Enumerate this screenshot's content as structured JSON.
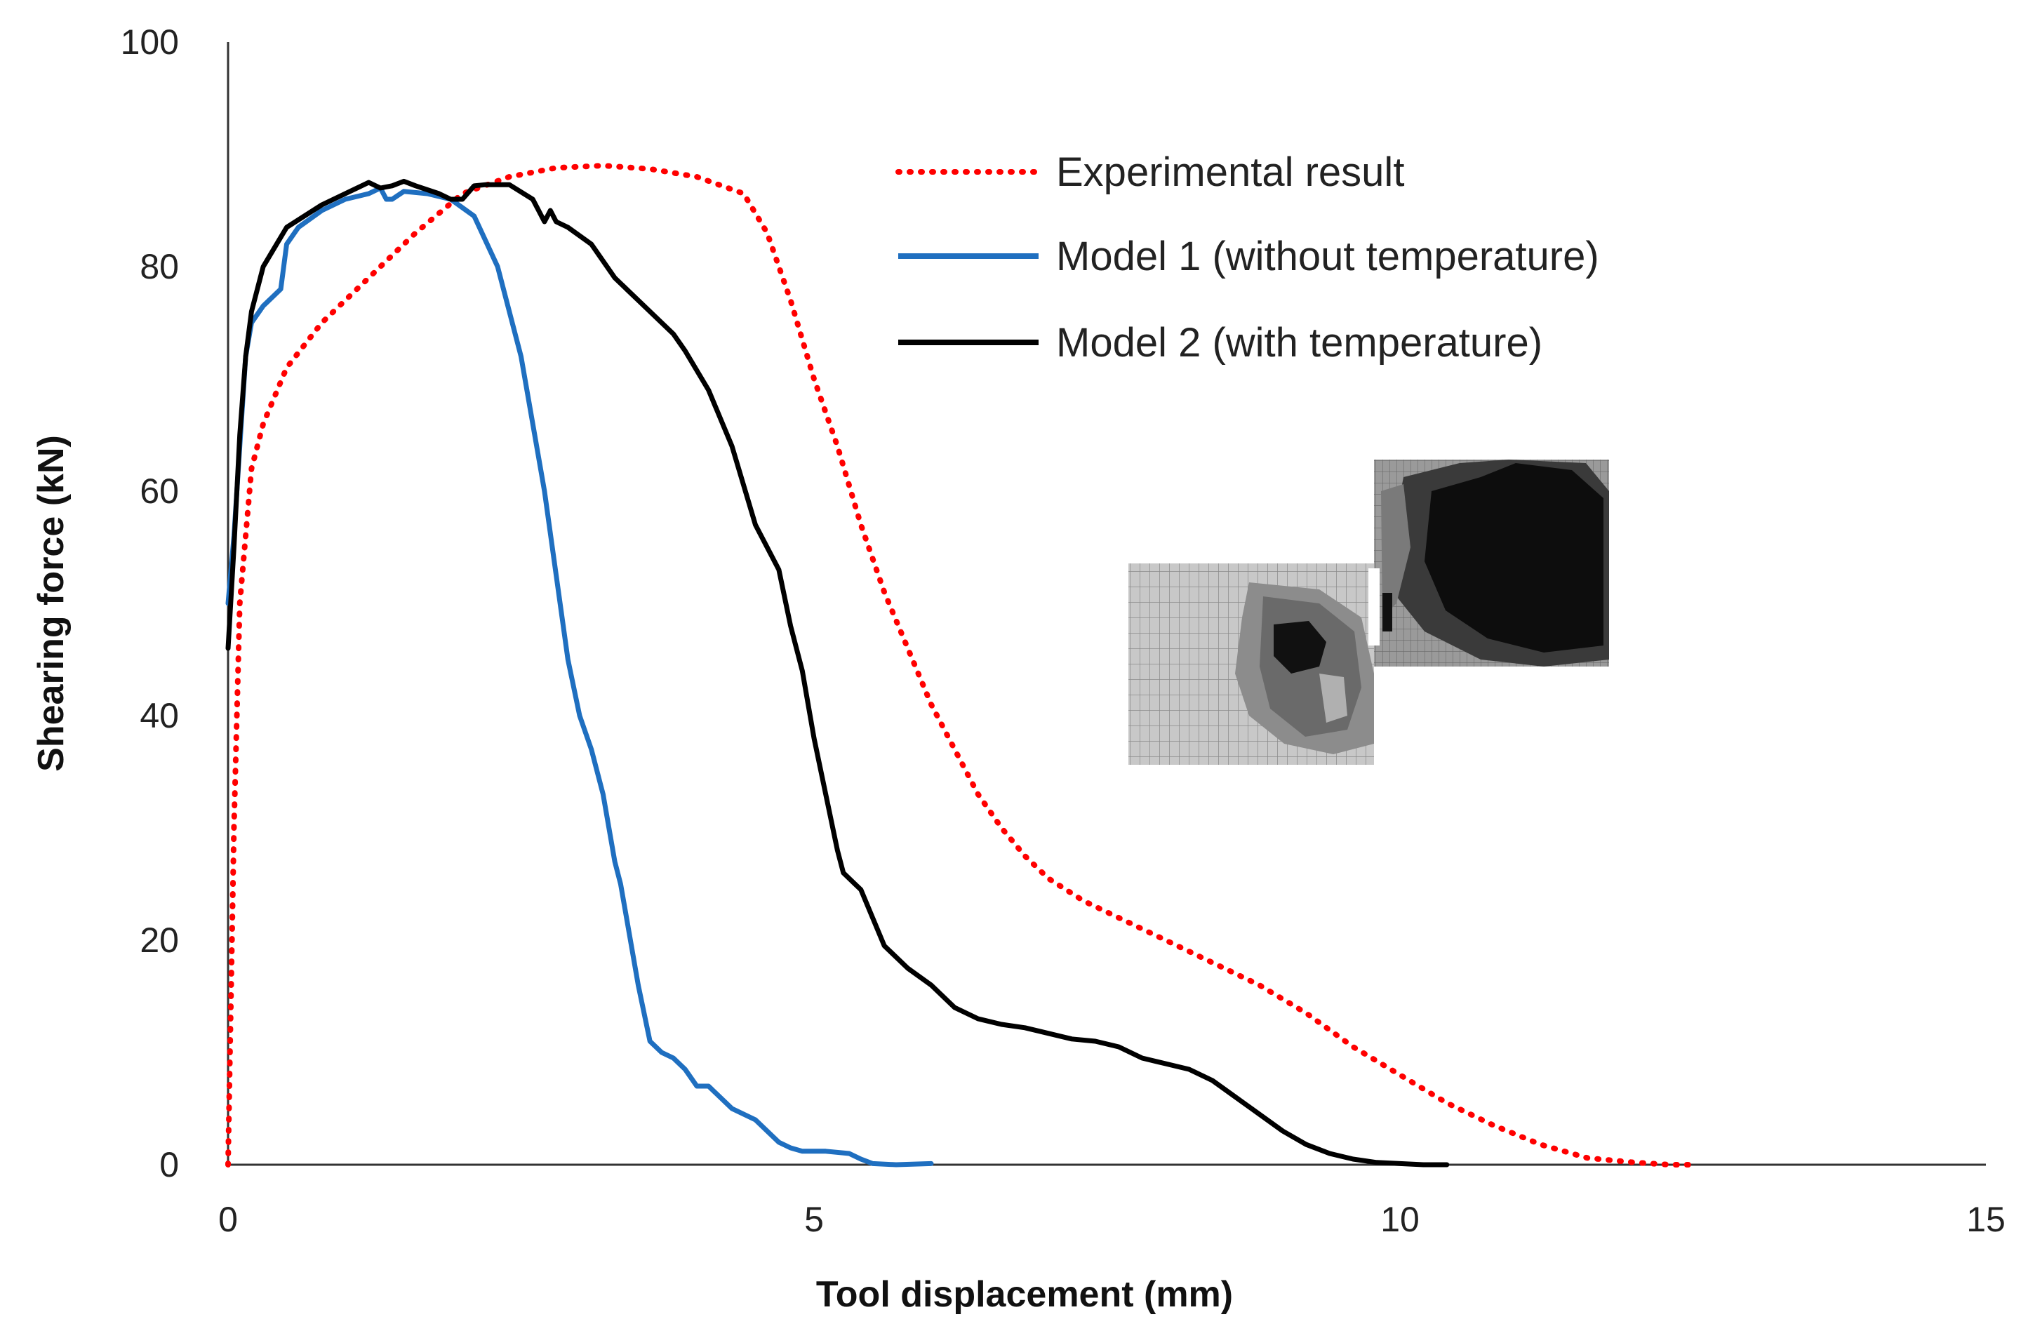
{
  "chart_data": {
    "type": "line",
    "title": "",
    "xlabel": "Tool displacement (mm)",
    "ylabel": "Shearing force (kN)",
    "xlim": [
      0,
      15
    ],
    "ylim": [
      0,
      100
    ],
    "xticks": [
      0,
      5,
      10,
      15
    ],
    "yticks": [
      0,
      20,
      40,
      60,
      80,
      100
    ],
    "grid": false,
    "legend_position": "top-right",
    "series": [
      {
        "name": "Experimental result",
        "color": "#ff0000",
        "style": "dotted",
        "x": [
          0,
          0.05,
          0.1,
          0.2,
          0.3,
          0.5,
          0.8,
          1.2,
          1.6,
          2.0,
          2.4,
          2.8,
          3.2,
          3.6,
          4.0,
          4.4,
          4.6,
          4.8,
          5.0,
          5.2,
          5.4,
          5.6,
          5.8,
          6.0,
          6.2,
          6.4,
          6.6,
          6.8,
          7.0,
          7.3,
          7.6,
          8.0,
          8.4,
          8.8,
          9.2,
          9.6,
          10.0,
          10.4,
          10.8,
          11.2,
          11.6,
          12.0,
          12.3,
          12.5
        ],
        "y": [
          0,
          30,
          50,
          62,
          66,
          71,
          75,
          79,
          83,
          86.5,
          88,
          88.8,
          89,
          88.7,
          88,
          86.5,
          83,
          77,
          70,
          64,
          57,
          51,
          46,
          41,
          37,
          33,
          30,
          27.5,
          25.5,
          23.5,
          22,
          20,
          18,
          16,
          13.5,
          10.5,
          8,
          5.5,
          3.5,
          1.8,
          0.6,
          0.2,
          0,
          0
        ]
      },
      {
        "name": "Model 1 (without temperature)",
        "color": "#1f6fc0",
        "style": "solid",
        "x": [
          0,
          0.05,
          0.1,
          0.15,
          0.2,
          0.3,
          0.4,
          0.45,
          0.5,
          0.6,
          0.8,
          1.0,
          1.2,
          1.3,
          1.35,
          1.4,
          1.5,
          1.7,
          1.9,
          2.1,
          2.3,
          2.5,
          2.7,
          2.9,
          3.0,
          3.1,
          3.2,
          3.3,
          3.35,
          3.4,
          3.5,
          3.6,
          3.7,
          3.8,
          3.9,
          4.0,
          4.1,
          4.2,
          4.3,
          4.5,
          4.7,
          4.8,
          4.9,
          5.0,
          5.1,
          5.3,
          5.4,
          5.5,
          5.7,
          6.0
        ],
        "y": [
          50,
          56,
          64,
          72,
          75,
          76.5,
          77.5,
          78,
          82,
          83.5,
          85,
          86,
          86.5,
          87,
          86,
          86,
          86.7,
          86.5,
          86,
          84.5,
          80,
          72,
          60,
          45,
          40,
          37,
          33,
          27,
          25,
          22,
          16,
          11,
          10,
          9.5,
          8.5,
          7,
          7,
          6,
          5,
          4,
          2,
          1.5,
          1.2,
          1.2,
          1.2,
          1,
          0.5,
          0.1,
          0,
          0.1
        ]
      },
      {
        "name": "Model 2 (with temperature)",
        "color": "#000000",
        "style": "solid",
        "x": [
          0,
          0.05,
          0.1,
          0.15,
          0.2,
          0.3,
          0.5,
          0.8,
          1.0,
          1.2,
          1.3,
          1.4,
          1.5,
          1.6,
          1.8,
          1.9,
          2.0,
          2.1,
          2.2,
          2.4,
          2.6,
          2.7,
          2.75,
          2.8,
          2.9,
          3.1,
          3.3,
          3.5,
          3.7,
          3.8,
          3.9,
          4.1,
          4.3,
          4.5,
          4.7,
          4.8,
          4.9,
          5.0,
          5.1,
          5.2,
          5.25,
          5.3,
          5.35,
          5.4,
          5.5,
          5.6,
          5.8,
          6.0,
          6.2,
          6.4,
          6.6,
          6.8,
          7.0,
          7.2,
          7.4,
          7.6,
          7.8,
          8.0,
          8.2,
          8.4,
          8.6,
          8.8,
          9.0,
          9.2,
          9.4,
          9.6,
          9.8,
          10.0,
          10.2,
          10.4
        ],
        "y": [
          46,
          55,
          65,
          72,
          76,
          80,
          83.5,
          85.5,
          86.5,
          87.5,
          87,
          87.2,
          87.6,
          87.2,
          86.5,
          86,
          86,
          87.2,
          87.3,
          87.3,
          86,
          84,
          85,
          84,
          83.5,
          82,
          79,
          77,
          75,
          74,
          72.5,
          69,
          64,
          57,
          53,
          48,
          44,
          38,
          33,
          28,
          26,
          25.5,
          25,
          24.5,
          22,
          19.5,
          17.5,
          16,
          14,
          13,
          12.5,
          12.2,
          11.7,
          11.2,
          11,
          10.5,
          9.5,
          9,
          8.5,
          7.5,
          6,
          4.5,
          3,
          1.8,
          1,
          0.5,
          0.2,
          0.1,
          0,
          0
        ]
      }
    ]
  },
  "inset": {
    "description_name": "mesh-temperature-contour"
  }
}
